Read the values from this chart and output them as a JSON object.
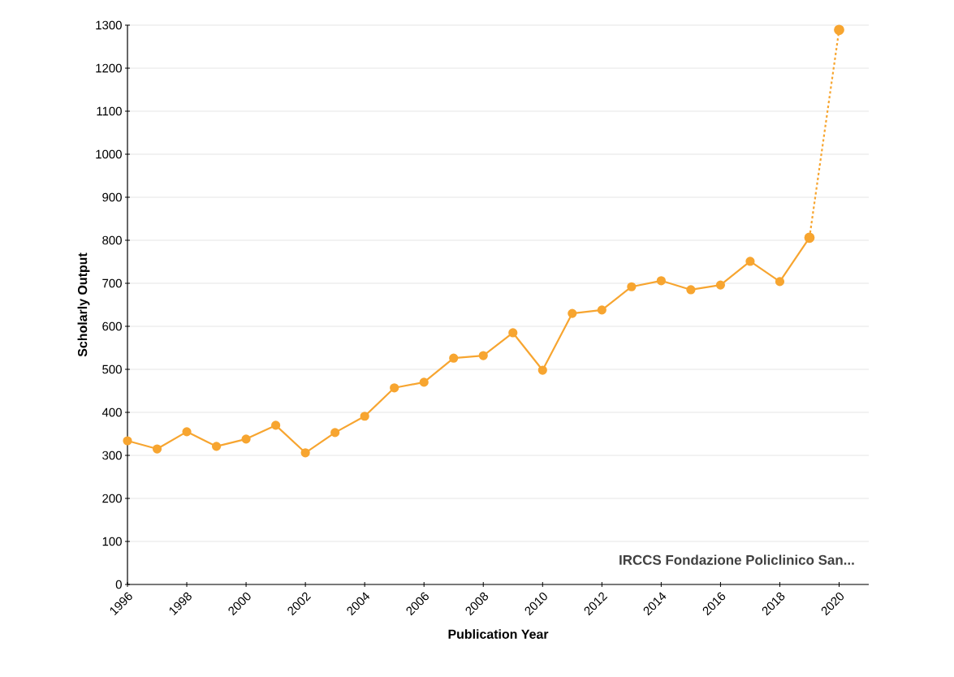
{
  "chart_data": {
    "type": "line",
    "xlabel": "Publication Year",
    "ylabel": "Scholarly Output",
    "series": [
      {
        "color": "#f7a530",
        "line_style": "solid",
        "x": [
          1996,
          1997,
          1998,
          1999,
          2000,
          2001,
          2002,
          2003,
          2004,
          2005,
          2006,
          2007,
          2008,
          2009,
          2010,
          2011,
          2012,
          2013,
          2014,
          2015,
          2016,
          2017,
          2018,
          2019
        ],
        "values": [
          334,
          315,
          355,
          321,
          338,
          370,
          306,
          353,
          391,
          457,
          470,
          526,
          532,
          585,
          498,
          630,
          638,
          692,
          706,
          685,
          696,
          751,
          704,
          806
        ]
      },
      {
        "color": "#f7a530",
        "line_style": "dashed",
        "x": [
          2019,
          2020
        ],
        "values": [
          806,
          1289
        ]
      }
    ],
    "xlim": [
      1996,
      2021
    ],
    "xticks": [
      1996,
      1998,
      2000,
      2002,
      2004,
      2006,
      2008,
      2010,
      2012,
      2014,
      2016,
      2018,
      2020
    ],
    "ylim": [
      0,
      1300
    ],
    "yticks": [
      0,
      100,
      200,
      300,
      400,
      500,
      600,
      700,
      800,
      900,
      1000,
      1100,
      1200,
      1300
    ],
    "grid": "y",
    "marker": "circle",
    "annotations": [
      "IRCCS Fondazione Policlinico San..."
    ]
  }
}
